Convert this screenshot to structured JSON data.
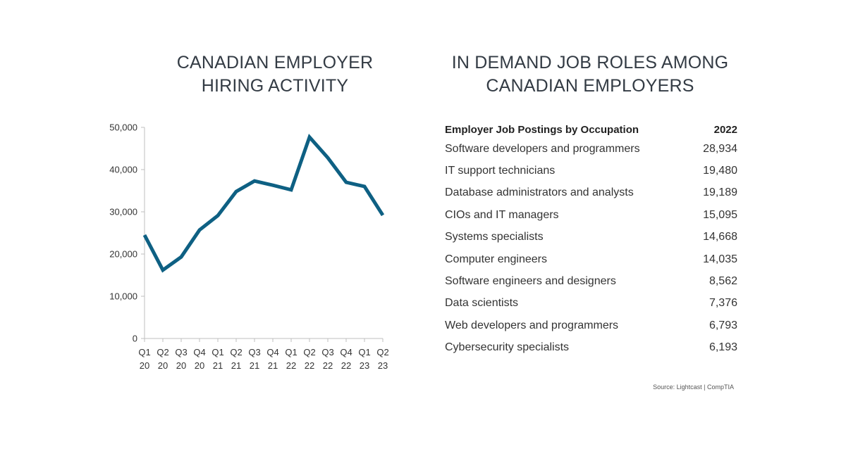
{
  "left_title": "CANADIAN EMPLOYER\nHIRING ACTIVITY",
  "right_title": "IN DEMAND JOB ROLES AMONG\nCANADIAN EMPLOYERS",
  "source": "Source: Lightcast | CompTIA",
  "colors": {
    "line": "#0e6083",
    "axis": "#bfbfbf"
  },
  "chart_data": [
    {
      "type": "line",
      "title": "CANADIAN EMPLOYER HIRING ACTIVITY",
      "xlabel": "",
      "ylabel": "",
      "categories": [
        [
          "Q1",
          "20"
        ],
        [
          "Q2",
          "20"
        ],
        [
          "Q3",
          "20"
        ],
        [
          "Q4",
          "20"
        ],
        [
          "Q1",
          "21"
        ],
        [
          "Q2",
          "21"
        ],
        [
          "Q3",
          "21"
        ],
        [
          "Q4",
          "21"
        ],
        [
          "Q1",
          "22"
        ],
        [
          "Q2",
          "22"
        ],
        [
          "Q3",
          "22"
        ],
        [
          "Q4",
          "22"
        ],
        [
          "Q1",
          "23"
        ],
        [
          "Q2",
          "23"
        ]
      ],
      "values": [
        24500,
        16200,
        19300,
        25700,
        29100,
        34800,
        37300,
        36300,
        35200,
        47700,
        42800,
        37000,
        36000,
        29200
      ],
      "ylim": [
        0,
        50000
      ],
      "yticks": [
        "0",
        "10,000",
        "20,000",
        "30,000",
        "40,000",
        "50,000"
      ],
      "ytick_values": [
        0,
        10000,
        20000,
        30000,
        40000,
        50000
      ],
      "grid": false
    },
    {
      "type": "table",
      "title": "IN DEMAND JOB ROLES AMONG CANADIAN EMPLOYERS",
      "columns": [
        "Employer Job Postings by Occupation",
        "2022"
      ],
      "rows": [
        [
          "Software developers and programmers",
          "28,934"
        ],
        [
          "IT support technicians",
          "19,480"
        ],
        [
          "Database administrators and analysts",
          "19,189"
        ],
        [
          "CIOs and IT managers",
          "15,095"
        ],
        [
          "Systems specialists",
          "14,668"
        ],
        [
          "Computer engineers",
          "14,035"
        ],
        [
          "Software engineers and designers",
          "8,562"
        ],
        [
          "Data scientists",
          "7,376"
        ],
        [
          "Web developers and programmers",
          "6,793"
        ],
        [
          "Cybersecurity specialists",
          "6,193"
        ]
      ]
    }
  ]
}
